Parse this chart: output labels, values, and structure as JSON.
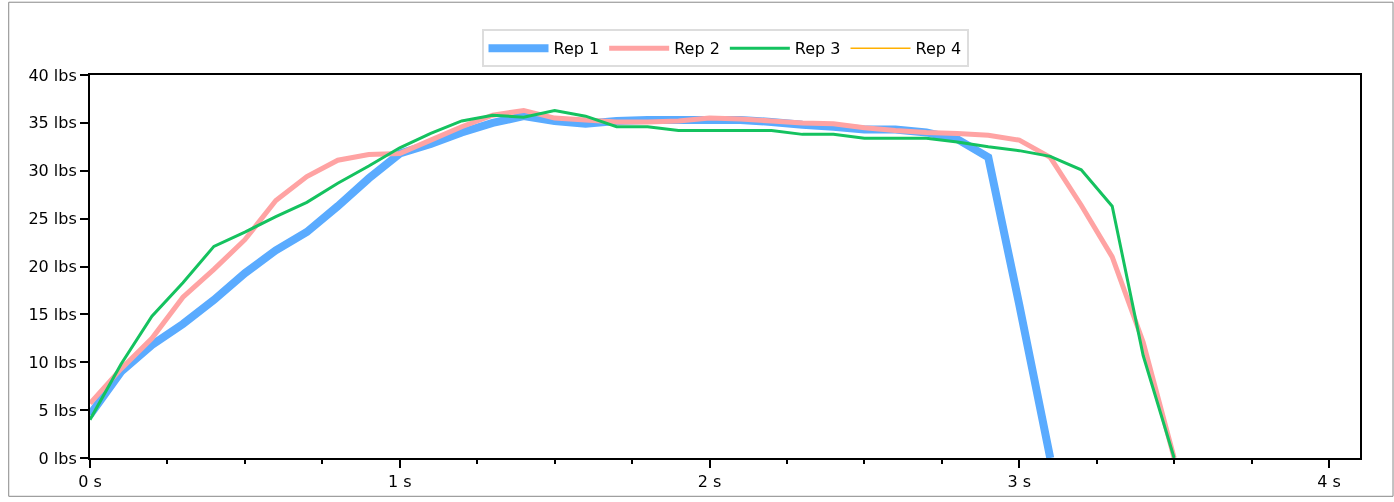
{
  "chart_data": {
    "type": "line",
    "x": [
      0,
      0.1,
      0.2,
      0.3,
      0.4,
      0.5,
      0.6,
      0.7,
      0.8,
      0.9,
      1.0,
      1.1,
      1.2,
      1.3,
      1.4,
      1.5,
      1.6,
      1.7,
      1.8,
      1.9,
      2.0,
      2.1,
      2.2,
      2.3,
      2.4,
      2.5,
      2.6,
      2.7,
      2.8,
      2.9,
      3.0,
      3.1,
      3.2,
      3.3,
      3.4,
      3.5
    ],
    "series": [
      {
        "name": "Rep 1",
        "color": "#5aabff",
        "values": [
          4.5,
          9,
          11.8,
          14,
          16.5,
          19.3,
          21.7,
          23.6,
          26.3,
          29.2,
          31.8,
          32.8,
          34,
          35,
          35.7,
          35.2,
          34.9,
          35.2,
          35.3,
          35.3,
          35.3,
          35.3,
          35.1,
          34.8,
          34.6,
          34.3,
          34.3,
          34,
          33.3,
          31.4,
          16,
          0,
          null,
          null,
          null,
          null
        ]
      },
      {
        "name": "Rep 2",
        "color": "#ffa3a3",
        "values": [
          5.7,
          9.3,
          12.5,
          16.8,
          19.7,
          22.8,
          26.9,
          29.4,
          31.1,
          31.7,
          31.8,
          33.2,
          34.6,
          35.8,
          36.3,
          35.5,
          35.3,
          35.1,
          35.1,
          35.2,
          35.5,
          35.4,
          35.2,
          35,
          34.9,
          34.5,
          34.2,
          34,
          33.9,
          33.7,
          33.2,
          31.4,
          26.4,
          21,
          12.1,
          0
        ]
      },
      {
        "name": "Rep 3",
        "color": "#14c25f",
        "values": [
          4,
          9.8,
          14.8,
          18.3,
          22.1,
          23.6,
          25.2,
          26.7,
          28.7,
          30.5,
          32.4,
          33.9,
          35.2,
          35.8,
          35.6,
          36.3,
          35.7,
          34.6,
          34.6,
          34.2,
          34.2,
          34.2,
          34.2,
          33.8,
          33.8,
          33.4,
          33.4,
          33.4,
          33,
          32.5,
          32.1,
          31.5,
          30.1,
          26.3,
          10.7,
          0
        ]
      },
      {
        "name": "Rep 4",
        "color": "#ffb000",
        "values": [
          null,
          null,
          null,
          null,
          null,
          null,
          null,
          null,
          null,
          null,
          null,
          null,
          null,
          null,
          null,
          null,
          null,
          null,
          null,
          null,
          null,
          null,
          null,
          null,
          null,
          null,
          null,
          null,
          null,
          null,
          null,
          null,
          null,
          null,
          null,
          null
        ]
      }
    ],
    "xlim": [
      0,
      4.1
    ],
    "ylim": [
      0,
      40
    ],
    "xticks": [
      {
        "value": 0,
        "label": "0 s"
      },
      {
        "value": 0.25,
        "label": null
      },
      {
        "value": 0.5,
        "label": null
      },
      {
        "value": 0.75,
        "label": null
      },
      {
        "value": 1,
        "label": "1 s"
      },
      {
        "value": 1.25,
        "label": null
      },
      {
        "value": 1.5,
        "label": null
      },
      {
        "value": 1.75,
        "label": null
      },
      {
        "value": 2,
        "label": "2 s"
      },
      {
        "value": 2.25,
        "label": null
      },
      {
        "value": 2.5,
        "label": null
      },
      {
        "value": 2.75,
        "label": null
      },
      {
        "value": 3,
        "label": "3 s"
      },
      {
        "value": 3.25,
        "label": null
      },
      {
        "value": 3.5,
        "label": null
      },
      {
        "value": 3.75,
        "label": null
      },
      {
        "value": 4,
        "label": "4 s"
      }
    ],
    "yticks": [
      {
        "value": 0,
        "label": "0 lbs"
      },
      {
        "value": 5,
        "label": "5 lbs"
      },
      {
        "value": 10,
        "label": "10 lbs"
      },
      {
        "value": 15,
        "label": "15 lbs"
      },
      {
        "value": 20,
        "label": "20 lbs"
      },
      {
        "value": 25,
        "label": "25 lbs"
      },
      {
        "value": 30,
        "label": "30 lbs"
      },
      {
        "value": 35,
        "label": "35 lbs"
      },
      {
        "value": 40,
        "label": "40 lbs"
      }
    ],
    "legend": "top",
    "marker": "none",
    "line_style": "solid"
  }
}
